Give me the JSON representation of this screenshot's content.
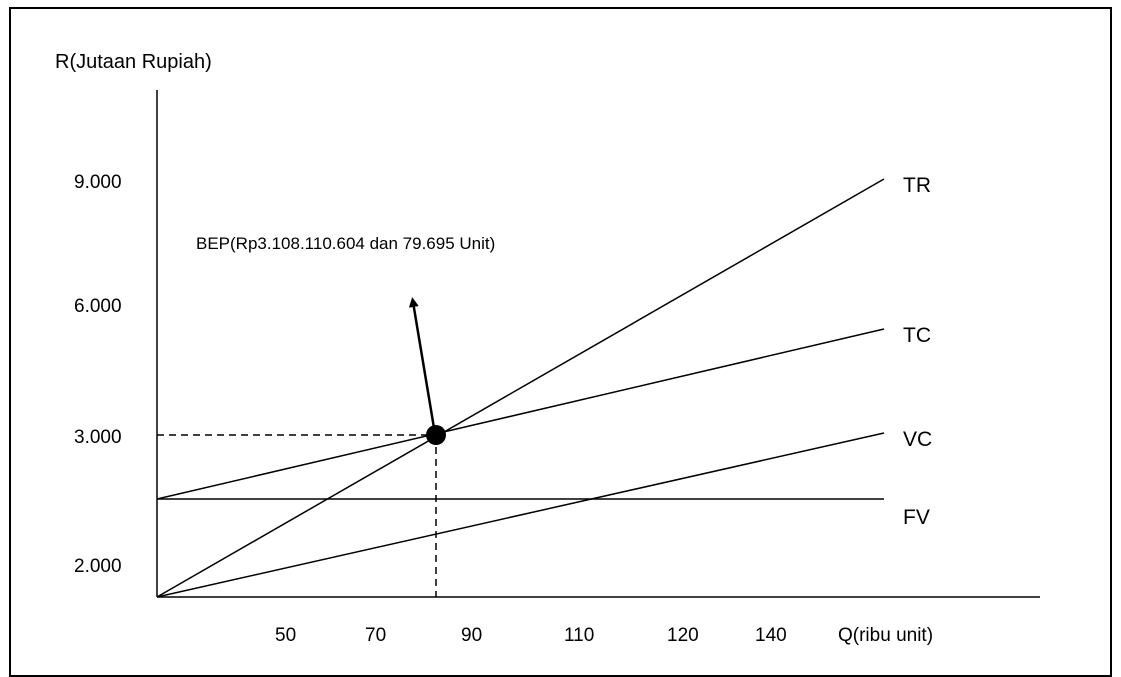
{
  "chart_data": {
    "type": "line",
    "ylabel": "R(Jutaan  Rupiah)",
    "xlabel": "Q(ribu unit)",
    "x_tick_labels": [
      "50",
      "70",
      "90",
      "110",
      "120",
      "140"
    ],
    "y_tick_labels": [
      "2.000",
      "3.000",
      "6.000",
      "9.000"
    ],
    "series": [
      {
        "name": "TR",
        "start": [
          "",
          "origin"
        ],
        "end": [
          "140",
          "9.000"
        ]
      },
      {
        "name": "TC",
        "start": [
          "",
          "fixed"
        ],
        "end": [
          "140",
          "~5.500"
        ]
      },
      {
        "name": "VC",
        "start": [
          "",
          "origin"
        ],
        "end": [
          "140",
          "~3.000"
        ]
      },
      {
        "name": "FV",
        "start": [
          "",
          "fixed"
        ],
        "end": [
          "140",
          "fixed"
        ]
      }
    ],
    "bep": {
      "label": "BEP(Rp3.108.110.604 dan 79.695 Unit)",
      "x": 79.695,
      "y_rupiah": 3108110604
    },
    "colors": {
      "lines": "#000000",
      "background": "#ffffff"
    }
  }
}
